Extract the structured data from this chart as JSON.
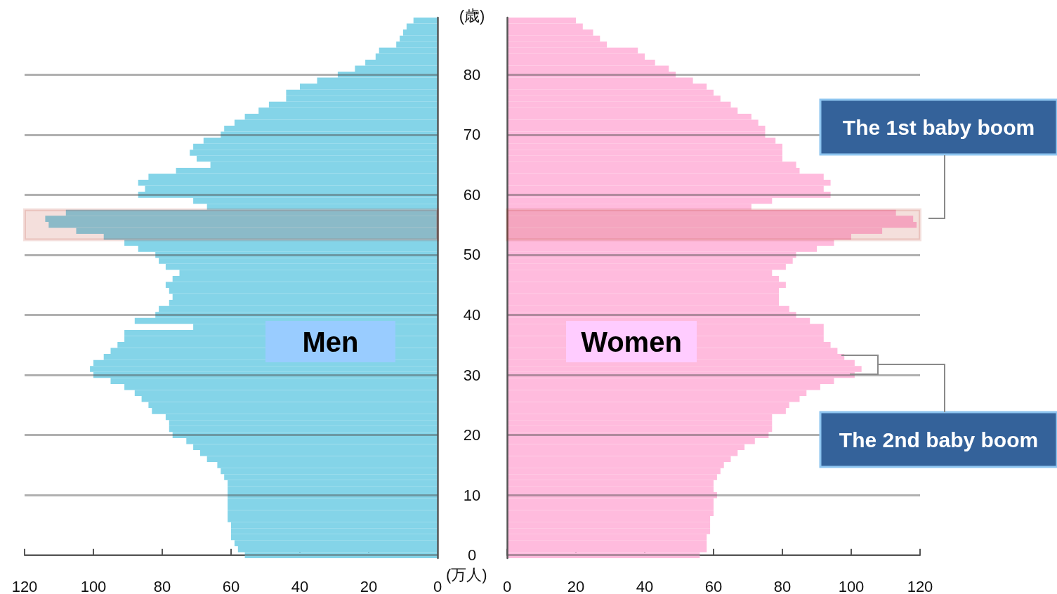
{
  "chart_data": [
    {
      "type": "bar",
      "orientation": "horizontal",
      "xlabel": "(万人)",
      "ylabel": "(歳)",
      "x": [
        0,
        1,
        2,
        3,
        4,
        5,
        6,
        7,
        8,
        9,
        10,
        11,
        12,
        13,
        14,
        15,
        16,
        17,
        18,
        19,
        20,
        21,
        22,
        23,
        24,
        25,
        26,
        27,
        28,
        29,
        30,
        31,
        32,
        33,
        34,
        35,
        36,
        37,
        38,
        39,
        40,
        41,
        42,
        43,
        44,
        45,
        46,
        47,
        48,
        49,
        50,
        51,
        52,
        53,
        54,
        55,
        56,
        57,
        58,
        59,
        60,
        61,
        62,
        63,
        64,
        65,
        66,
        67,
        68,
        69,
        70,
        71,
        72,
        73,
        74,
        75,
        76,
        77,
        78,
        79,
        80,
        81,
        82,
        83,
        84,
        85,
        86,
        87,
        88,
        89
      ],
      "values": [
        56,
        58,
        59,
        60,
        60,
        60,
        61,
        61,
        61,
        61,
        61,
        61,
        61,
        62,
        63,
        64,
        67,
        69,
        71,
        73,
        77,
        78,
        78,
        79,
        83,
        84,
        86,
        88,
        91,
        95,
        100,
        101,
        100,
        97,
        95,
        93,
        91,
        91,
        71,
        88,
        82,
        81,
        78,
        77,
        78,
        79,
        77,
        75,
        79,
        81,
        82,
        87,
        91,
        97,
        105,
        113,
        114,
        108,
        67,
        71,
        87,
        85,
        87,
        84,
        76,
        66,
        70,
        72,
        71,
        68,
        63,
        62,
        59,
        56,
        52,
        49,
        44,
        44,
        40,
        35,
        29,
        24,
        21,
        18,
        17,
        12,
        11,
        10,
        9,
        7
      ],
      "color": "#84d4e8",
      "xlim": [
        120,
        0
      ],
      "xticks": [
        120,
        100,
        80,
        60,
        40,
        20,
        0
      ],
      "ylim": [
        -0.5,
        89.5
      ],
      "yticks": [
        0,
        10,
        20,
        30,
        40,
        50,
        60,
        70,
        80
      ],
      "grid": "y",
      "annotations": [
        "Men"
      ],
      "bands": [
        {
          "axis": "y",
          "from": 52.5,
          "to": 57.5,
          "color": "#b22b14"
        }
      ]
    },
    {
      "type": "bar",
      "orientation": "horizontal",
      "tick_labels": "x",
      "x": [
        0,
        1,
        2,
        3,
        4,
        5,
        6,
        7,
        8,
        9,
        10,
        11,
        12,
        13,
        14,
        15,
        16,
        17,
        18,
        19,
        20,
        21,
        22,
        23,
        24,
        25,
        26,
        27,
        28,
        29,
        30,
        31,
        32,
        33,
        34,
        35,
        36,
        37,
        38,
        39,
        40,
        41,
        42,
        43,
        44,
        45,
        46,
        47,
        48,
        49,
        50,
        51,
        52,
        53,
        54,
        55,
        56,
        57,
        58,
        59,
        60,
        61,
        62,
        63,
        64,
        65,
        66,
        67,
        68,
        69,
        70,
        71,
        72,
        73,
        74,
        75,
        76,
        77,
        78,
        79,
        80,
        81,
        82,
        83,
        84,
        85,
        86,
        87,
        88,
        89
      ],
      "values": [
        56,
        58,
        58,
        58,
        59,
        59,
        59,
        60,
        60,
        60,
        61,
        60,
        60,
        61,
        62,
        63,
        65,
        67,
        69,
        72,
        76,
        77,
        77,
        77,
        81,
        82,
        85,
        87,
        91,
        95,
        101,
        103,
        101,
        98,
        96,
        94,
        92,
        92,
        92,
        88,
        84,
        82,
        79,
        79,
        79,
        81,
        79,
        77,
        81,
        83,
        84,
        90,
        95,
        100,
        109,
        119,
        118,
        113,
        71,
        77,
        94,
        92,
        94,
        92,
        85,
        84,
        80,
        80,
        80,
        78,
        75,
        75,
        73,
        71,
        67,
        65,
        62,
        60,
        58,
        54,
        49,
        47,
        43,
        40,
        38,
        29,
        27,
        25,
        22,
        20
      ],
      "color": "#ffbbdd",
      "xlim": [
        0,
        120
      ],
      "xticks": [
        0,
        20,
        40,
        60,
        80,
        100,
        120
      ],
      "ylim": [
        -0.5,
        89.5
      ],
      "yticks": [
        0,
        10,
        20,
        30,
        40,
        50,
        60,
        70,
        80
      ],
      "grid": "y",
      "annotations": [
        "The 1st baby boom",
        "Women",
        "The 2nd baby boom"
      ],
      "bands": [
        {
          "axis": "y",
          "from": 52.5,
          "to": 57.5,
          "color": "#b22b14"
        }
      ]
    }
  ]
}
